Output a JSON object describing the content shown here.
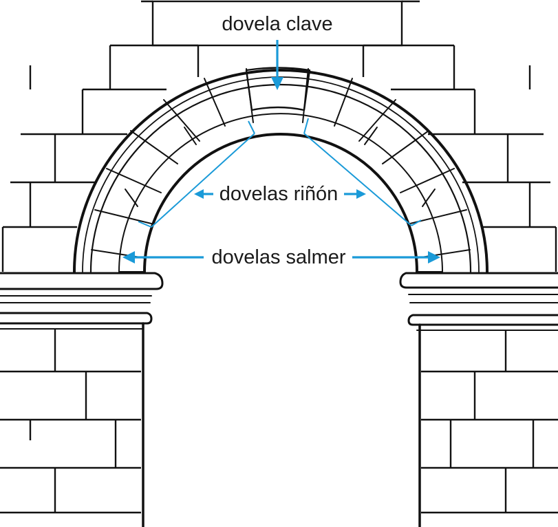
{
  "labels": {
    "keystone": "dovela clave",
    "haunch": "dovelas riñón",
    "springer": "dovelas salmer"
  },
  "colors": {
    "annotation": "#1a9ad8",
    "ink": "#111111",
    "background": "#ffffff"
  }
}
